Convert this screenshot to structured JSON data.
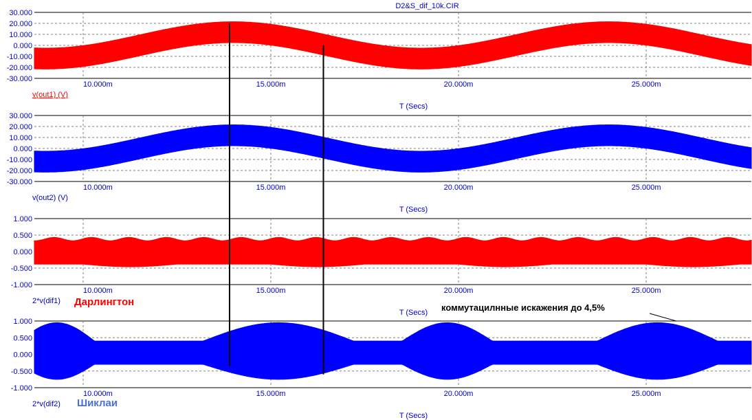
{
  "chart_data": [
    {
      "type": "line",
      "title": "D2&S_dif_10k.CIR",
      "xlabel": "T (Secs)",
      "ylabel": "v(out1) (V)",
      "ylabel_underlined": true,
      "color": "#ff0000",
      "ylim": [
        -30,
        30
      ],
      "yticks": [
        "30.000",
        "20.000",
        "10.000",
        "0.000",
        "-10.000",
        "-20.000",
        "-30.000"
      ],
      "xlim": [
        8.7,
        27.8
      ],
      "xticks": [
        "10.000m",
        "15.000m",
        "20.000m",
        "25.000m"
      ],
      "xtick_values": [
        10,
        15,
        20,
        25
      ],
      "grid": true,
      "envelope": {
        "center_amplitude": 12,
        "half_width": 9.5,
        "period_ms": 10,
        "center_at_10ms": 4.5,
        "center_zero_at_ms": 16.5
      }
    },
    {
      "type": "line",
      "title": "",
      "xlabel": "T (Secs)",
      "ylabel": "v(out2) (V)",
      "color": "#0000ff",
      "ylim": [
        -30,
        30
      ],
      "yticks": [
        "30.000",
        "20.000",
        "10.000",
        "0.000",
        "-10.000",
        "-20.000",
        "-30.000"
      ],
      "xlim": [
        8.7,
        27.8
      ],
      "xticks": [
        "10.000m",
        "15.000m",
        "20.000m",
        "25.000m"
      ],
      "xtick_values": [
        10,
        15,
        20,
        25
      ],
      "grid": true,
      "envelope": {
        "center_amplitude": 12,
        "half_width": 9.5,
        "period_ms": 10,
        "center_at_10ms": 4.5,
        "center_zero_at_ms": 16.5
      }
    },
    {
      "type": "line",
      "title": "",
      "xlabel": "T (Secs)",
      "ylabel": "2*v(dif1)",
      "series_label": "Дарлингтон",
      "color": "#ff0000",
      "ylim": [
        -1,
        1
      ],
      "yticks": [
        "1.000",
        "0.500",
        "0.000",
        "-0.500",
        "-1.000"
      ],
      "xlim": [
        8.7,
        27.8
      ],
      "xticks": [
        "10.000m",
        "15.000m",
        "20.000m",
        "25.000m"
      ],
      "xtick_values": [
        10,
        15,
        20,
        25
      ],
      "grid": true,
      "band": {
        "upper": 0.38,
        "lower": -0.38
      }
    },
    {
      "type": "line",
      "title": "",
      "xlabel": "T (Secs)",
      "ylabel": "2*v(dif2)",
      "series_label": "Шиклаи",
      "color": "#0000ff",
      "ylim": [
        -1,
        1
      ],
      "yticks": [
        "1.000",
        "0.500",
        "0.000",
        "-0.500",
        "-1.000"
      ],
      "xlim": [
        8.7,
        27.8
      ],
      "xticks": [
        "10.000m",
        "15.000m",
        "20.000m",
        "25.000m"
      ],
      "xtick_values": [
        10,
        15,
        20,
        25
      ],
      "grid": true,
      "band": {
        "upper": 0.4,
        "lower": -0.3
      },
      "annotation": {
        "text": "коммутацилнные искажения до 4,5%",
        "x": 25.8,
        "y": 1.0
      }
    }
  ],
  "markers": [
    {
      "x": 13.9,
      "y_top": 20,
      "y_bottom_panel": 3,
      "y_bottom": -0.35
    },
    {
      "x": 16.4,
      "y_top": 0,
      "y_bottom_panel": 3,
      "y_bottom": -0.6
    }
  ],
  "colors": {
    "tick_text": "#0000cc",
    "grid": "#808080",
    "red": "#ff0000",
    "blue": "#0000ff",
    "label_blue": "#4a6fe0"
  }
}
